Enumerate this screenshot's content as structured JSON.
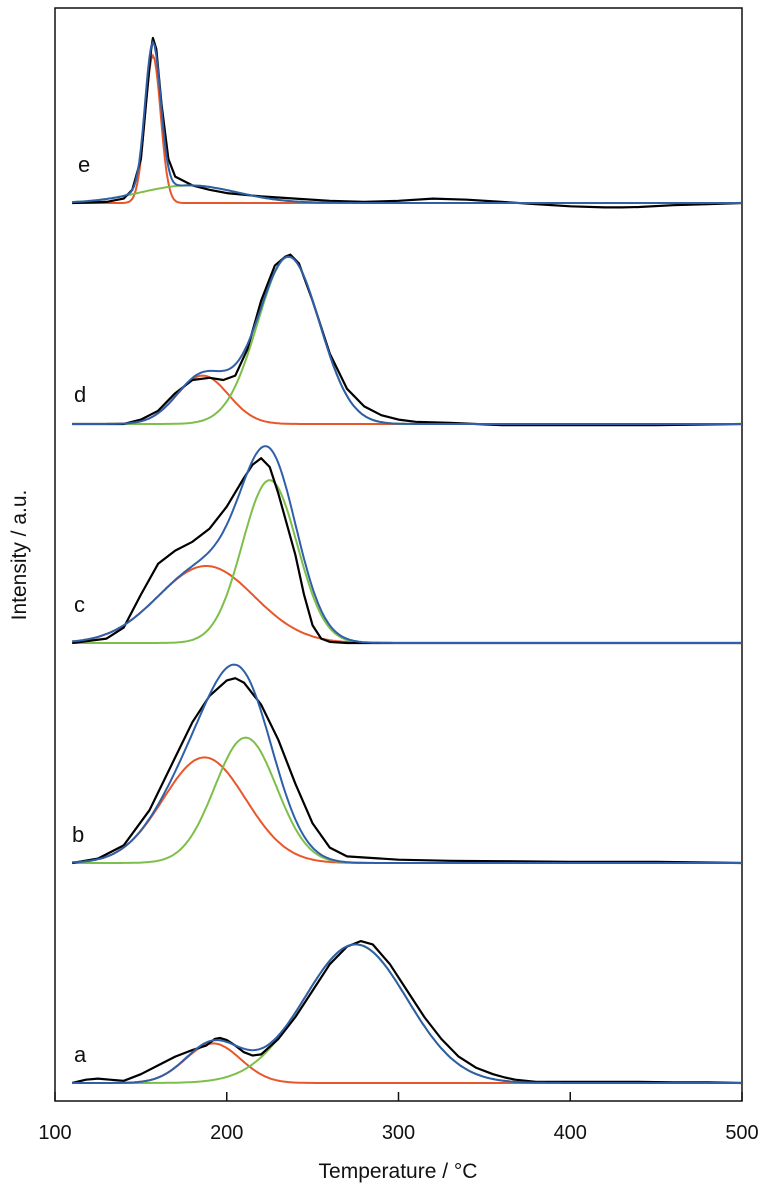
{
  "chart_data": {
    "type": "line",
    "title": "",
    "xlabel": "Temperature / °C",
    "ylabel": "Intensity / a.u.",
    "xlim": [
      100,
      500
    ],
    "xticks": [
      100,
      200,
      300,
      400,
      500
    ],
    "grid": false,
    "colors": {
      "measured": "#000000",
      "fit_total": "#2e5fa8",
      "peak_low_T": "#e8572a",
      "peak_high_T": "#7dbf4a"
    },
    "panels": [
      {
        "label": "a",
        "peaks": [
          {
            "center": 192,
            "width": 16,
            "height": 0.18,
            "color_key": "peak_low_T"
          },
          {
            "center": 275,
            "width": 30,
            "height": 0.63,
            "color_key": "peak_high_T"
          }
        ],
        "measured": {
          "x": [
            110,
            118,
            125,
            132,
            140,
            150,
            160,
            170,
            180,
            188,
            193,
            196,
            200,
            205,
            210,
            215,
            220,
            230,
            240,
            250,
            260,
            270,
            278,
            285,
            295,
            305,
            315,
            325,
            335,
            345,
            355,
            362,
            368,
            380,
            400,
            420,
            440,
            460,
            480,
            500
          ],
          "y": [
            0.0,
            0.015,
            0.02,
            0.015,
            0.01,
            0.04,
            0.08,
            0.12,
            0.15,
            0.17,
            0.2,
            0.205,
            0.195,
            0.17,
            0.14,
            0.125,
            0.13,
            0.2,
            0.3,
            0.42,
            0.54,
            0.62,
            0.645,
            0.63,
            0.54,
            0.42,
            0.3,
            0.2,
            0.12,
            0.07,
            0.04,
            0.025,
            0.015,
            0.005,
            0.005,
            0.005,
            0.005,
            0.003,
            0.003,
            0.0
          ]
        }
      },
      {
        "label": "b",
        "peaks": [
          {
            "center": 187,
            "width": 24,
            "height": 0.48,
            "color_key": "peak_low_T"
          },
          {
            "center": 211,
            "width": 18,
            "height": 0.57,
            "color_key": "peak_high_T"
          }
        ],
        "measured": {
          "x": [
            110,
            125,
            140,
            155,
            170,
            180,
            190,
            200,
            205,
            210,
            220,
            230,
            240,
            250,
            260,
            270,
            280,
            300,
            330,
            360,
            400,
            450,
            500
          ],
          "y": [
            0.0,
            0.02,
            0.08,
            0.24,
            0.48,
            0.64,
            0.76,
            0.83,
            0.84,
            0.82,
            0.72,
            0.56,
            0.36,
            0.18,
            0.07,
            0.03,
            0.025,
            0.015,
            0.01,
            0.008,
            0.005,
            0.005,
            0.0
          ]
        }
      },
      {
        "label": "c",
        "peaks": [
          {
            "center": 188,
            "width": 28,
            "height": 0.35,
            "color_key": "peak_low_T"
          },
          {
            "center": 225,
            "width": 16,
            "height": 0.74,
            "color_key": "peak_high_T"
          }
        ],
        "measured": {
          "x": [
            110,
            130,
            140,
            150,
            160,
            170,
            180,
            190,
            200,
            210,
            215,
            220,
            225,
            230,
            240,
            245,
            250,
            255,
            260,
            270,
            300,
            350,
            400,
            450,
            500
          ],
          "y": [
            0.0,
            0.02,
            0.07,
            0.22,
            0.36,
            0.42,
            0.46,
            0.52,
            0.62,
            0.75,
            0.81,
            0.84,
            0.8,
            0.68,
            0.4,
            0.22,
            0.08,
            0.02,
            0.005,
            0.0,
            0.0,
            0.0,
            0.0,
            0.0,
            0.0
          ]
        }
      },
      {
        "label": "d",
        "peaks": [
          {
            "center": 186,
            "width": 15,
            "height": 0.22,
            "color_key": "peak_low_T"
          },
          {
            "center": 236,
            "width": 18,
            "height": 0.76,
            "color_key": "peak_high_T"
          }
        ],
        "measured": {
          "x": [
            110,
            140,
            150,
            160,
            170,
            180,
            190,
            198,
            205,
            212,
            220,
            228,
            234,
            237,
            242,
            250,
            260,
            270,
            280,
            290,
            300,
            310,
            330,
            360,
            400,
            450,
            500
          ],
          "y": [
            0.0,
            0.0,
            0.02,
            0.06,
            0.14,
            0.2,
            0.21,
            0.2,
            0.22,
            0.34,
            0.56,
            0.72,
            0.76,
            0.77,
            0.73,
            0.56,
            0.32,
            0.16,
            0.08,
            0.04,
            0.02,
            0.01,
            0.005,
            -0.005,
            -0.005,
            -0.005,
            0.0
          ]
        }
      },
      {
        "label": "e",
        "peaks": [
          {
            "center": 157,
            "width": 4.5,
            "height": 0.67,
            "color_key": "peak_low_T"
          },
          {
            "center": 178,
            "width": 28,
            "height": 0.08,
            "color_key": "peak_high_T"
          }
        ],
        "measured": {
          "x": [
            110,
            130,
            140,
            145,
            150,
            153,
            156,
            157,
            159,
            162,
            166,
            170,
            180,
            190,
            200,
            220,
            240,
            260,
            280,
            300,
            320,
            340,
            360,
            380,
            400,
            420,
            430,
            440,
            460,
            480,
            500
          ],
          "y": [
            0.0,
            0.005,
            0.02,
            0.06,
            0.2,
            0.45,
            0.7,
            0.75,
            0.7,
            0.45,
            0.2,
            0.12,
            0.08,
            0.06,
            0.045,
            0.03,
            0.02,
            0.01,
            0.005,
            0.01,
            0.02,
            0.015,
            0.005,
            -0.005,
            -0.015,
            -0.02,
            -0.02,
            -0.018,
            -0.01,
            -0.005,
            0.0
          ]
        }
      }
    ]
  }
}
